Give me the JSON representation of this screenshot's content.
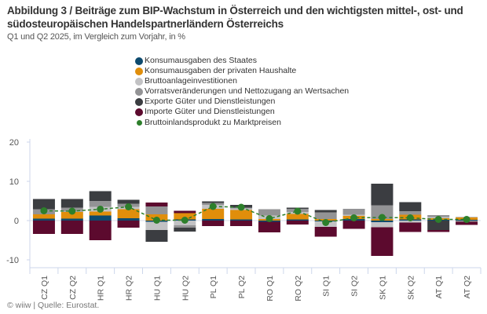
{
  "header": {
    "title": "Abbildung 3 / Beiträge zum BIP-Wachstum in Österreich und den wichtigsten mittel-, ost- und südosteuropäischen Handelspartnerländern Österreichs",
    "subtitle": "Q1 und Q2 2025, im Vergleich zum Vorjahr, in %"
  },
  "footer": {
    "source": "© wiiw | Quelle: Eurostat."
  },
  "chart_data": {
    "type": "bar",
    "stacked": true,
    "title": "Abbildung 3 / Beiträge zum BIP-Wachstum in Österreich und den wichtigsten mittel-, ost- und südosteuropäischen Handelspartnerländern Österreichs",
    "subtitle": "Q1 und Q2 2025, im Vergleich zum Vorjahr, in %",
    "xlabel": "",
    "ylabel": "",
    "ylim": [
      -10,
      20
    ],
    "yticks": [
      20,
      10,
      0,
      -10
    ],
    "grid": false,
    "legend_position": "top-center",
    "categories": [
      "CZ Q1",
      "CZ Q2",
      "HR Q1",
      "HR Q2",
      "HU Q1",
      "HU Q2",
      "PL Q1",
      "PL Q2",
      "RO Q1",
      "RO Q2",
      "SI Q1",
      "SI Q2",
      "SK Q1",
      "SK Q2",
      "AT Q1",
      "AT Q2"
    ],
    "series": [
      {
        "name": "Konsumausgaben des Staates",
        "color": "#0d4a6e",
        "kind": "bar",
        "values": [
          0.5,
          0.5,
          1.3,
          0.6,
          -0.3,
          0.3,
          0.4,
          0.3,
          -0.3,
          0.3,
          -0.2,
          0.4,
          -0.4,
          0.3,
          0.2,
          0.2
        ]
      },
      {
        "name": "Konsumausgaben der privaten Haushalte",
        "color": "#e08e0b",
        "kind": "bar",
        "values": [
          1.1,
          1.7,
          1.0,
          2.3,
          1.6,
          1.6,
          2.6,
          2.4,
          0.4,
          1.4,
          0.4,
          0.8,
          0.4,
          1.2,
          0.4,
          0.6
        ]
      },
      {
        "name": "Bruttoanlageinvestitionen",
        "color": "#c2c2c4",
        "kind": "bar",
        "values": [
          0.0,
          0.1,
          1.2,
          0.6,
          -2.1,
          -1.2,
          1.0,
          0.4,
          0.9,
          0.5,
          -1.4,
          0.3,
          -1.3,
          -0.5,
          0.3,
          0.2
        ]
      },
      {
        "name": "Vorratsveränderungen und Nettozugang an Wertsachen",
        "color": "#939395",
        "kind": "bar",
        "values": [
          1.3,
          1.0,
          1.5,
          0.8,
          2.0,
          -0.6,
          0.5,
          0.2,
          1.6,
          0.8,
          1.7,
          1.5,
          3.5,
          0.9,
          0.5,
          -0.3
        ]
      },
      {
        "name": "Exporte Güter und Dienstleistungen",
        "color": "#3b3d41",
        "kind": "bar",
        "values": [
          2.6,
          2.2,
          2.5,
          1.0,
          -3.0,
          -1.0,
          0.4,
          0.7,
          0.0,
          0.3,
          0.6,
          0.0,
          5.5,
          2.3,
          -2.4,
          0.0
        ]
      },
      {
        "name": "Importe Güter und Dienstleistungen",
        "color": "#5c0a2e",
        "kind": "bar",
        "values": [
          -3.4,
          -3.4,
          -5.0,
          -1.8,
          1.0,
          0.6,
          -1.4,
          -1.4,
          -2.7,
          -1.0,
          -2.5,
          -2.1,
          -7.3,
          -2.4,
          -0.5,
          -0.8
        ]
      },
      {
        "name": "Bruttoinlandsprodukt zu Marktpreisen",
        "color": "#2d7f2b",
        "kind": "line",
        "values": [
          2.5,
          2.4,
          2.9,
          3.5,
          0.1,
          0.1,
          3.6,
          3.4,
          0.5,
          2.4,
          -0.5,
          0.7,
          0.8,
          0.7,
          0.3,
          0.3
        ]
      }
    ]
  }
}
